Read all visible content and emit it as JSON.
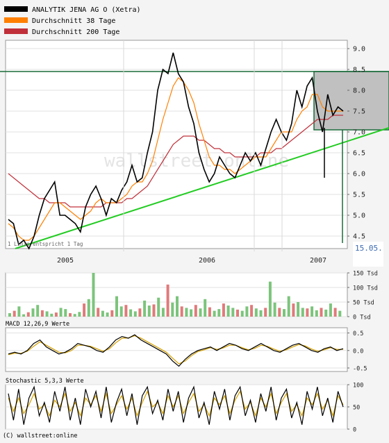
{
  "legend": {
    "items": [
      {
        "label": "ANALYTIK JENA AG O (Xetra)",
        "color": "#000000"
      },
      {
        "label": "Durchschnitt 38 Tage",
        "color": "#ff8000"
      },
      {
        "label": "Durchschnitt 200 Tage",
        "color": "#c0303a"
      }
    ]
  },
  "note": "1 Linie entspricht 1 Tag",
  "date_marker": "15.05.",
  "footer": "(C) wallstreet:online",
  "watermark": "wallstreet online",
  "colors": {
    "trend": "#22cc22",
    "resistance": "#1a6b3a",
    "zone": "#c0c0c0",
    "volume_up": "#7cc47c",
    "volume_down": "#e07a7a",
    "signal": "#d4a000"
  },
  "chart_data": [
    {
      "type": "line",
      "name": "price",
      "title": "ANALYTIK JENA AG O (Xetra)",
      "x_labels": [
        "2005",
        "2006",
        "2007"
      ],
      "y_ticks": [
        "9.0",
        "8.5",
        "8.0",
        "7.5",
        "7.0",
        "6.5",
        "6.0",
        "5.5",
        "5.0",
        "4.5"
      ],
      "ylim": [
        4.2,
        9.2
      ],
      "series": [
        {
          "name": "ANALYTIK JENA AG O (Xetra)",
          "values": [
            4.9,
            4.8,
            4.3,
            4.4,
            4.2,
            4.5,
            5.0,
            5.4,
            5.6,
            5.8,
            5.0,
            5.0,
            4.9,
            4.8,
            4.6,
            5.2,
            5.5,
            5.7,
            5.4,
            5.0,
            5.4,
            5.3,
            5.6,
            5.8,
            6.2,
            5.8,
            5.9,
            6.5,
            7.0,
            8.0,
            8.5,
            8.4,
            8.9,
            8.4,
            8.2,
            7.6,
            7.2,
            6.5,
            6.1,
            5.8,
            6.0,
            6.4,
            6.2,
            6.0,
            5.9,
            6.2,
            6.5,
            6.3,
            6.5,
            6.2,
            6.6,
            7.0,
            7.3,
            7.0,
            6.8,
            7.2,
            8.0,
            7.6,
            8.1,
            8.3,
            7.5,
            7.0,
            7.9,
            7.4,
            7.6,
            7.5
          ]
        },
        {
          "name": "Durchschnitt 38 Tage",
          "values": [
            4.8,
            4.7,
            4.5,
            4.4,
            4.4,
            4.5,
            4.7,
            4.9,
            5.1,
            5.3,
            5.3,
            5.2,
            5.1,
            5.0,
            4.9,
            5.0,
            5.1,
            5.3,
            5.4,
            5.3,
            5.3,
            5.3,
            5.4,
            5.5,
            5.7,
            5.8,
            5.8,
            6.0,
            6.3,
            6.8,
            7.3,
            7.7,
            8.1,
            8.3,
            8.2,
            8.0,
            7.7,
            7.2,
            6.8,
            6.4,
            6.2,
            6.2,
            6.1,
            6.1,
            6.0,
            6.1,
            6.2,
            6.3,
            6.4,
            6.4,
            6.4,
            6.6,
            6.8,
            7.0,
            7.0,
            7.0,
            7.3,
            7.5,
            7.6,
            7.9,
            7.9,
            7.6,
            7.5,
            7.5,
            7.5,
            7.5
          ]
        },
        {
          "name": "Durchschnitt 200 Tage",
          "values": [
            6.0,
            5.9,
            5.8,
            5.7,
            5.6,
            5.5,
            5.4,
            5.4,
            5.3,
            5.3,
            5.3,
            5.3,
            5.2,
            5.2,
            5.2,
            5.2,
            5.2,
            5.2,
            5.2,
            5.3,
            5.3,
            5.3,
            5.3,
            5.4,
            5.4,
            5.5,
            5.6,
            5.7,
            5.9,
            6.1,
            6.3,
            6.5,
            6.7,
            6.8,
            6.9,
            6.9,
            6.9,
            6.8,
            6.8,
            6.7,
            6.6,
            6.6,
            6.5,
            6.5,
            6.4,
            6.4,
            6.4,
            6.4,
            6.4,
            6.5,
            6.5,
            6.5,
            6.6,
            6.6,
            6.7,
            6.8,
            6.9,
            7.0,
            7.1,
            7.2,
            7.3,
            7.3,
            7.3,
            7.4,
            7.4,
            7.4
          ]
        }
      ],
      "annotations": {
        "trend_line": [
          4.2,
          7.1
        ],
        "resistance_level": 8.45,
        "support_zone": [
          7.05,
          8.45
        ],
        "drop_low": 5.9
      }
    },
    {
      "type": "bar",
      "name": "volume",
      "y_ticks": [
        "150 Tsd",
        "100 Tsd",
        "50 Tsd",
        "0 Tsd"
      ],
      "ylim": [
        0,
        150
      ],
      "values": [
        12,
        20,
        35,
        8,
        15,
        28,
        40,
        22,
        18,
        10,
        14,
        30,
        26,
        12,
        9,
        16,
        45,
        60,
        150,
        30,
        20,
        14,
        22,
        70,
        35,
        40,
        25,
        18,
        28,
        55,
        38,
        42,
        65,
        30,
        110,
        48,
        70,
        35,
        30,
        25,
        40,
        28,
        60,
        32,
        20,
        26,
        45,
        38,
        30,
        24,
        20,
        35,
        40,
        28,
        22,
        30,
        120,
        48,
        30,
        26,
        70,
        45,
        50,
        30,
        28,
        35,
        22,
        30,
        24,
        45,
        30,
        20
      ]
    },
    {
      "type": "line",
      "name": "macd",
      "title": "MACD 12,26,9 Werte",
      "y_ticks": [
        "0.5",
        "0.0",
        "-0.5"
      ],
      "ylim": [
        -0.6,
        0.65
      ],
      "series": [
        {
          "name": "MACD",
          "values": [
            -0.1,
            -0.05,
            -0.1,
            0.0,
            0.2,
            0.3,
            0.1,
            0.0,
            -0.1,
            -0.05,
            0.05,
            0.2,
            0.15,
            0.1,
            0.0,
            -0.05,
            0.1,
            0.3,
            0.4,
            0.35,
            0.45,
            0.3,
            0.2,
            0.1,
            0.0,
            -0.1,
            -0.3,
            -0.45,
            -0.25,
            -0.1,
            0.0,
            0.05,
            0.1,
            0.0,
            0.1,
            0.2,
            0.15,
            0.05,
            0.0,
            0.1,
            0.2,
            0.1,
            0.0,
            -0.05,
            0.05,
            0.15,
            0.2,
            0.1,
            0.0,
            -0.05,
            0.05,
            0.1,
            0.0,
            0.05
          ]
        },
        {
          "name": "Signal",
          "values": [
            -0.12,
            -0.08,
            -0.08,
            -0.02,
            0.12,
            0.25,
            0.15,
            0.05,
            -0.05,
            -0.07,
            0.0,
            0.15,
            0.15,
            0.12,
            0.05,
            -0.02,
            0.05,
            0.22,
            0.35,
            0.36,
            0.42,
            0.35,
            0.25,
            0.15,
            0.05,
            -0.05,
            -0.22,
            -0.38,
            -0.3,
            -0.15,
            -0.03,
            0.02,
            0.08,
            0.03,
            0.07,
            0.15,
            0.15,
            0.08,
            0.02,
            0.06,
            0.15,
            0.12,
            0.04,
            -0.02,
            0.02,
            0.1,
            0.17,
            0.13,
            0.04,
            -0.02,
            0.02,
            0.08,
            0.03,
            0.03
          ]
        }
      ]
    },
    {
      "type": "line",
      "name": "stochastic",
      "title": "Stochastic 5,3,3 Werte",
      "y_ticks": [
        "100",
        "50",
        "0"
      ],
      "ylim": [
        0,
        100
      ],
      "series": [
        {
          "name": "%K",
          "values": [
            80,
            20,
            90,
            10,
            70,
            95,
            30,
            60,
            15,
            85,
            40,
            95,
            20,
            70,
            10,
            90,
            50,
            85,
            25,
            95,
            15,
            60,
            90,
            30,
            80,
            10,
            75,
            95,
            35,
            65,
            20,
            90,
            40,
            85,
            15,
            70,
            95,
            25,
            60,
            10,
            85,
            45,
            90,
            20,
            75,
            95,
            30,
            65,
            15,
            80,
            40,
            95,
            20,
            70,
            90,
            25,
            60,
            10,
            85,
            45,
            95,
            30,
            70,
            15,
            85,
            50
          ]
        },
        {
          "name": "%D",
          "values": [
            70,
            40,
            70,
            35,
            55,
            80,
            45,
            55,
            30,
            65,
            50,
            80,
            40,
            60,
            30,
            70,
            55,
            75,
            40,
            80,
            35,
            55,
            75,
            45,
            70,
            30,
            60,
            85,
            50,
            60,
            35,
            75,
            50,
            75,
            35,
            60,
            80,
            40,
            55,
            30,
            70,
            55,
            75,
            35,
            65,
            85,
            45,
            60,
            30,
            70,
            50,
            80,
            35,
            60,
            80,
            40,
            55,
            30,
            70,
            55,
            80,
            45,
            65,
            30,
            75,
            55
          ]
        }
      ]
    }
  ]
}
